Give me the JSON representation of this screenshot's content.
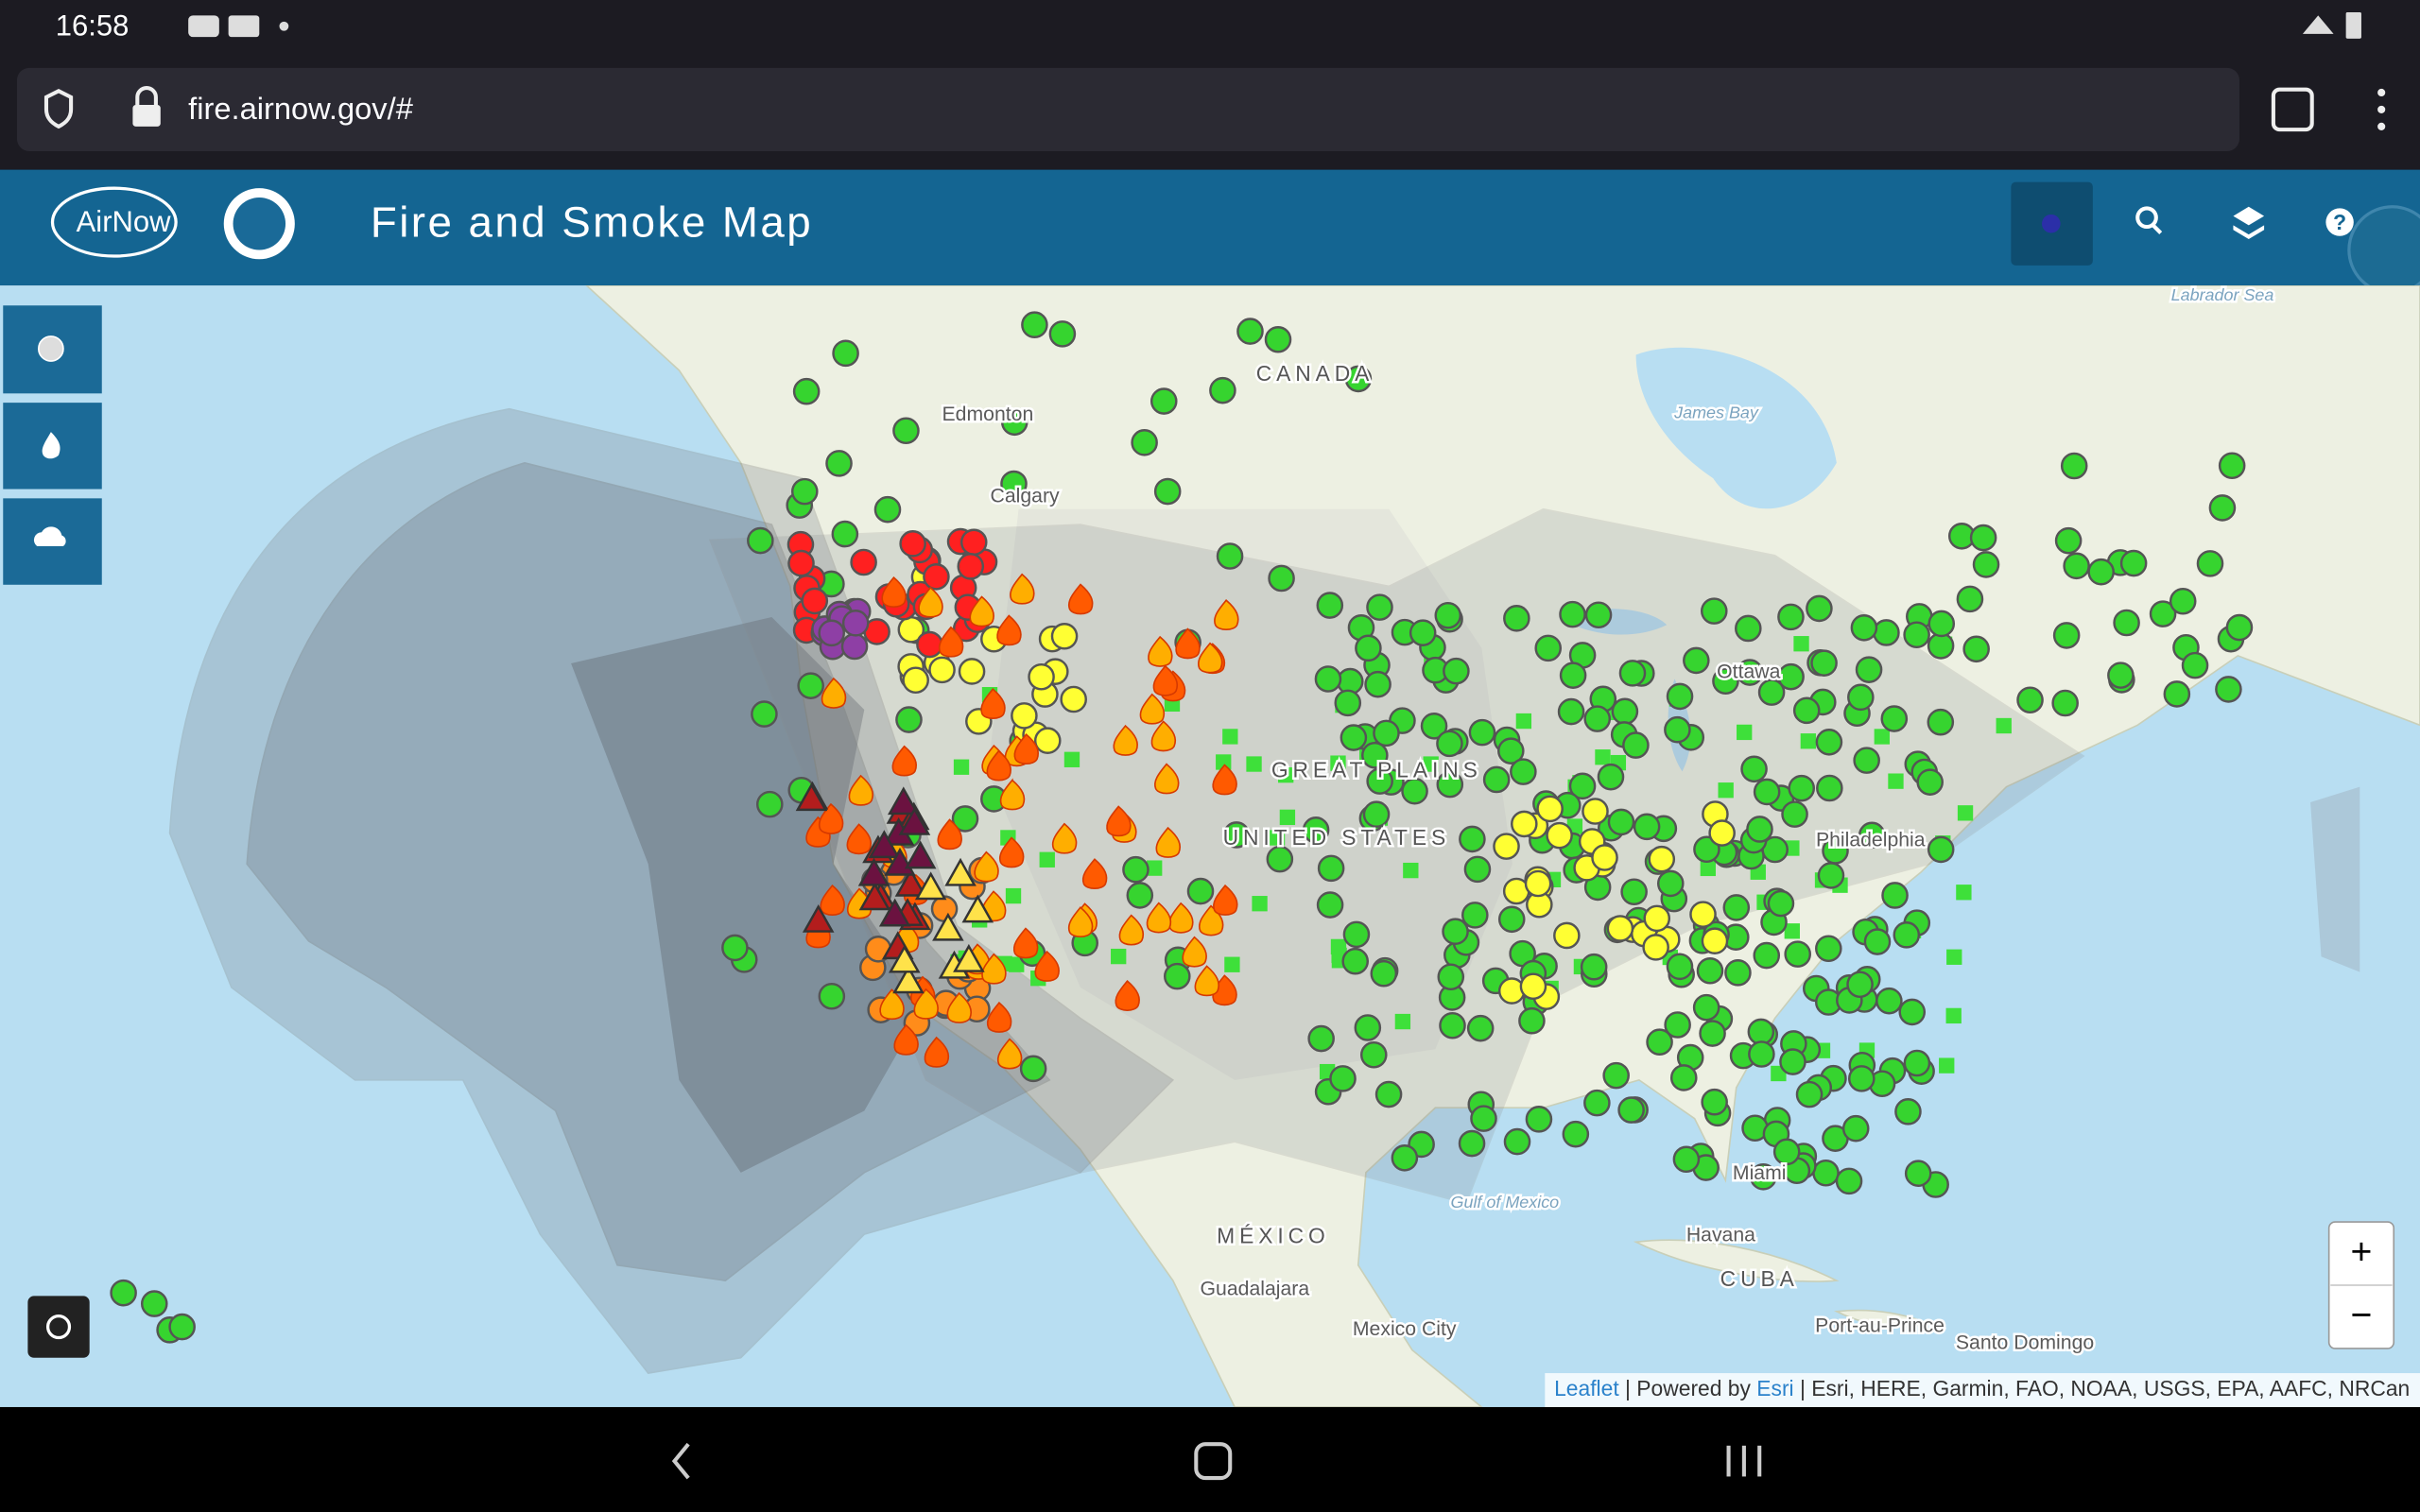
{
  "status_bar": {
    "time": "16:58"
  },
  "browser": {
    "url": "fire.airnow.gov/#"
  },
  "header": {
    "logo": "AirNow",
    "title": "Fire and Smoke Map",
    "help": "?"
  },
  "map": {
    "labels": [
      "CANADA",
      "Edmonton",
      "Calgary",
      "James Bay",
      "Labrador Sea",
      "Ottawa",
      "GREAT PLAINS",
      "UNITED STATES",
      "Philadelphia",
      "Miami",
      "Gulf of Mexico",
      "MÉXICO",
      "Havana",
      "CUBA",
      "Guadalajara",
      "Mexico City",
      "Port-au-Prince",
      "Santo Domingo"
    ],
    "zoom_in": "+",
    "zoom_out": "−",
    "attribution": [
      "Leaflet",
      " | Powered by ",
      "Esri",
      " | Esri, HERE, Garmin, FAO, NOAA, USGS, EPA, AAFC, NRCan"
    ]
  }
}
